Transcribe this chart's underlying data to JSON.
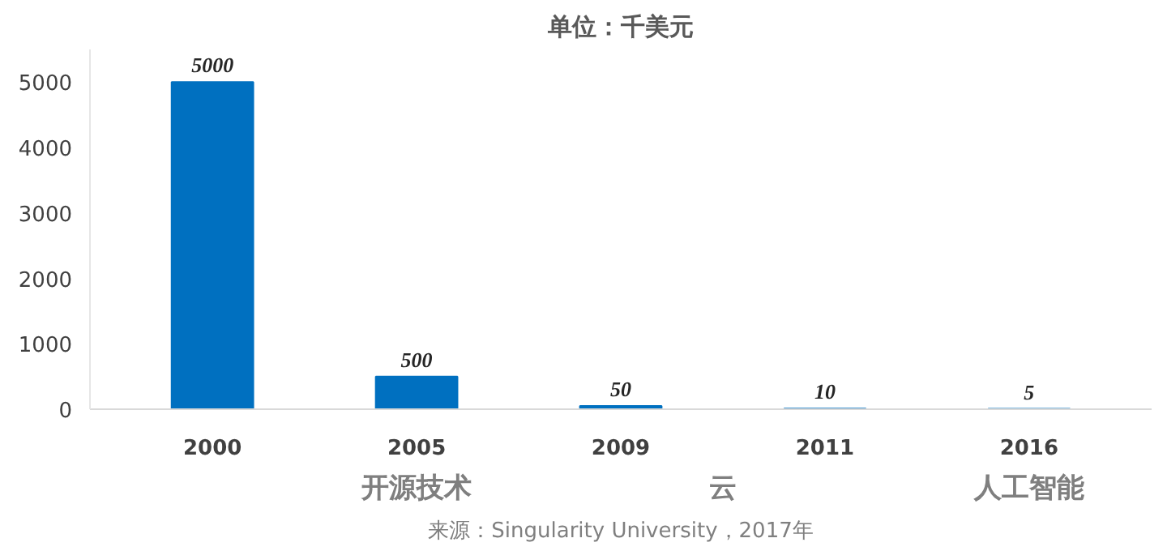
{
  "chart_data": {
    "type": "bar",
    "title": "单位：千美元",
    "categories": [
      "2000",
      "2005",
      "2009",
      "2011",
      "2016"
    ],
    "values": [
      5000,
      500,
      50,
      10,
      5
    ],
    "color": "#0070c0",
    "ylim": [
      0,
      5500
    ],
    "yticks": [
      0,
      1000,
      2000,
      3000,
      4000,
      5000
    ],
    "grid": false,
    "data_labels": true,
    "annotations": [
      "开源技术",
      "云",
      "人工智能",
      "来源：Singularity University，2017年"
    ]
  }
}
